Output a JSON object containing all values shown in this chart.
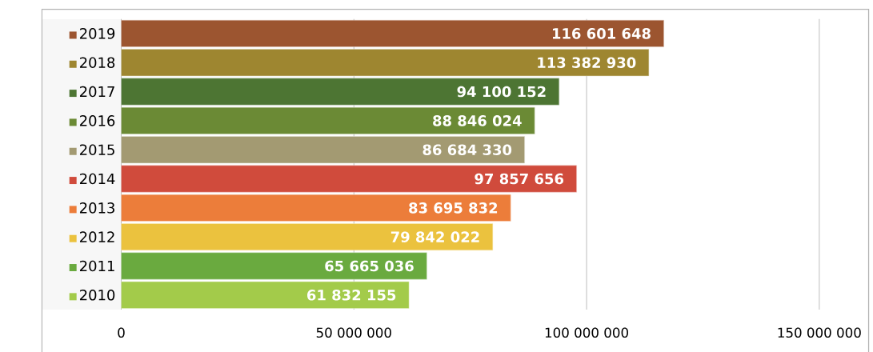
{
  "chart_data": {
    "type": "bar",
    "orientation": "horizontal",
    "categories": [
      "2019",
      "2018",
      "2017",
      "2016",
      "2015",
      "2014",
      "2013",
      "2012",
      "2011",
      "2010"
    ],
    "values": [
      116601648,
      113382930,
      94100152,
      88846024,
      86684330,
      97857656,
      83695832,
      79842022,
      65665036,
      61832155
    ],
    "value_labels": [
      "116 601 648",
      "113 382 930",
      "94 100 152",
      "88 846 024",
      "86 684 330",
      "97 857 656",
      "83 695 832",
      "79 842 022",
      "65 665 036",
      "61 832 155"
    ],
    "colors": [
      "#9c5530",
      "#9e8630",
      "#4d7533",
      "#6b8a35",
      "#a39a72",
      "#d04b3c",
      "#ec7d3a",
      "#ebc23e",
      "#6aaa3f",
      "#a3cb4a"
    ],
    "xlim": [
      0,
      160000000
    ],
    "xticks": [
      0,
      {
        "value": 50000000,
        "label": "50 000 000"
      },
      {
        "value": 100000000,
        "label": "100 000 000"
      },
      {
        "value": 150000000,
        "label": "150 000 000"
      }
    ],
    "grid": "x"
  }
}
